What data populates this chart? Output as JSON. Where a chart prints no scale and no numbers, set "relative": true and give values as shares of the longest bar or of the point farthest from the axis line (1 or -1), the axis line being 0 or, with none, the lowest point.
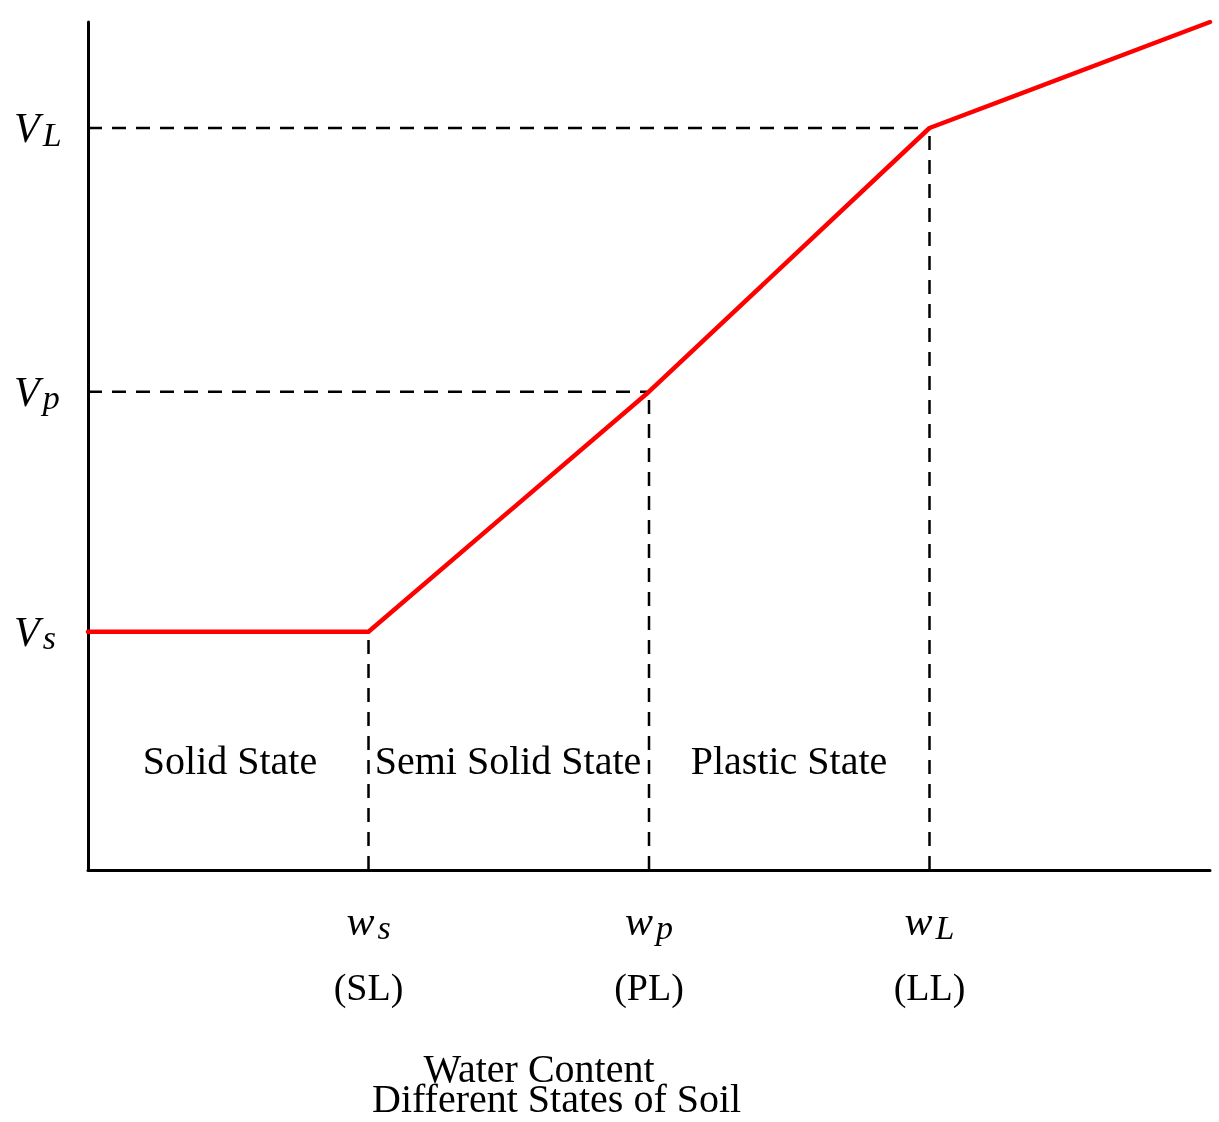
{
  "chart_data": {
    "type": "line",
    "title": "Different States of Soil",
    "xlabel": "Water Content",
    "relative": true,
    "categories": [
      null,
      "w$_{s}$\n(SL)",
      "w$_{p}$\n(PL)",
      "w$_{L}$\n(LL)",
      null
    ],
    "series": [
      {
        "color": "#ff0000",
        "values": [
          0.281,
          0.281,
          0.564,
          0.875,
          1
        ]
      }
    ],
    "ref_lines": [
      {
        "axis": "y",
        "value": 0.564,
        "label": "V$_{p}$",
        "color": "#000000",
        "line_style": "dashed"
      },
      {
        "axis": "y",
        "value": 0.875,
        "label": "V$_{L}$",
        "color": "#000000",
        "line_style": "dashed"
      },
      {
        "axis": "x",
        "value": "w$_{s}$\n(SL)",
        "color": "#000000",
        "line_style": "dashed"
      },
      {
        "axis": "x",
        "value": "w$_{p}$\n(PL)",
        "color": "#000000",
        "line_style": "dashed"
      },
      {
        "axis": "x",
        "value": "w$_{L}$\n(LL)",
        "color": "#000000",
        "line_style": "dashed"
      }
    ],
    "annotations": [
      "V$_{s}$",
      "Solid State",
      "Semi Solid State",
      "Plastic State"
    ],
    "marker": "none",
    "line_style": "solid",
    "grid": false
  }
}
